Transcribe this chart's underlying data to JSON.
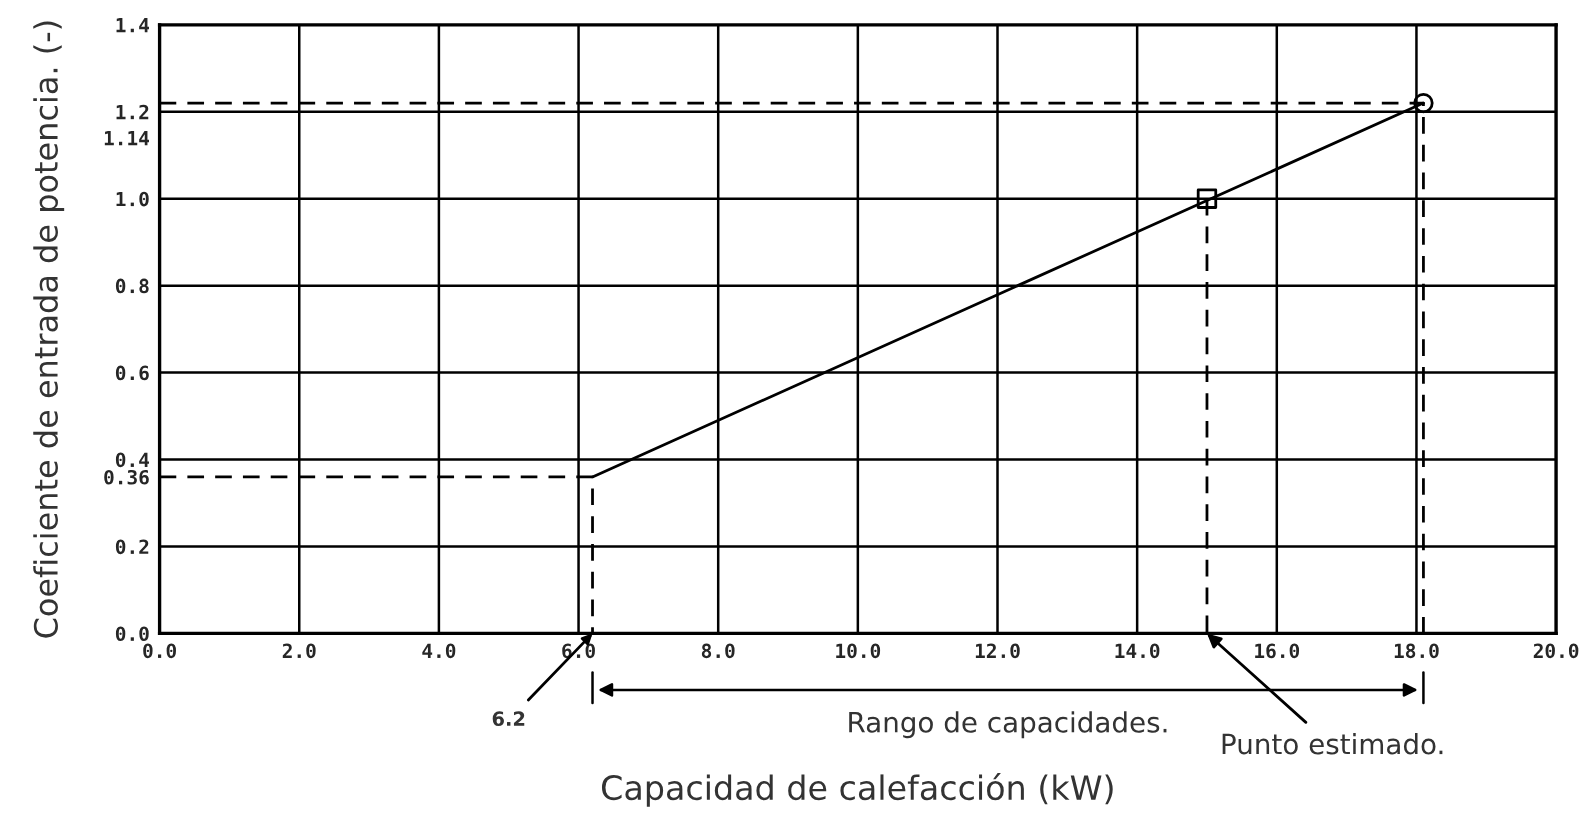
{
  "chart_data": {
    "type": "line",
    "xlabel": "Capacidad de calefacción (kW)",
    "ylabel": "Coeficiente de entrada de potencia. (-)",
    "xlim": [
      0,
      20
    ],
    "ylim": [
      0,
      1.4
    ],
    "xticks": [
      {
        "value": 0,
        "label": "0.0"
      },
      {
        "value": 2,
        "label": "2.0"
      },
      {
        "value": 4,
        "label": "4.0"
      },
      {
        "value": 6,
        "label": "6.0"
      },
      {
        "value": 8,
        "label": "8.0"
      },
      {
        "value": 10,
        "label": "10.0"
      },
      {
        "value": 12,
        "label": "12.0"
      },
      {
        "value": 14,
        "label": "14.0"
      },
      {
        "value": 16,
        "label": "16.0"
      },
      {
        "value": 18,
        "label": "18.0"
      },
      {
        "value": 20,
        "label": "20.0"
      }
    ],
    "yticks": [
      {
        "value": 0,
        "label": "0.0"
      },
      {
        "value": 0.2,
        "label": "0.2"
      },
      {
        "value": 0.36,
        "label": "0.36"
      },
      {
        "value": 0.4,
        "label": "0.4"
      },
      {
        "value": 0.6,
        "label": "0.6"
      },
      {
        "value": 0.8,
        "label": "0.8"
      },
      {
        "value": 1.0,
        "label": "1.0"
      },
      {
        "value": 1.14,
        "label": "1.14"
      },
      {
        "value": 1.2,
        "label": "1.2"
      },
      {
        "value": 1.4,
        "label": "1.4"
      }
    ],
    "grid": true,
    "legend": false,
    "series": [
      {
        "color": "#000000",
        "x": [
          6.2,
          18.1
        ],
        "values": [
          0.36,
          1.22
        ],
        "line_style": "solid",
        "marker": "none"
      },
      {
        "type": "scatter",
        "color": "#000000",
        "x": [
          15.0
        ],
        "values": [
          1.0
        ],
        "marker": "square"
      },
      {
        "type": "scatter",
        "color": "#000000",
        "x": [
          18.1
        ],
        "values": [
          1.22
        ],
        "marker": "circle"
      },
      {
        "type": "line",
        "color": "#000000",
        "x": [
          0,
          6.2,
          6.2
        ],
        "values": [
          0.36,
          0.36,
          0
        ],
        "line_style": "dashed",
        "marker": "none"
      },
      {
        "type": "line",
        "color": "#000000",
        "x": [
          0,
          18.1,
          18.1
        ],
        "values": [
          1.22,
          1.22,
          0
        ],
        "line_style": "dashed",
        "marker": "none"
      },
      {
        "type": "line",
        "color": "#000000",
        "x": [
          15.0,
          15.0
        ],
        "values": [
          1.0,
          0
        ],
        "line_style": "dashed",
        "marker": "none"
      }
    ],
    "annotations": [
      {
        "text": "6.2",
        "x": 6.2,
        "y": 0
      },
      {
        "text": "Punto estimado.",
        "x": 15.0,
        "y": 0
      },
      "Rango de capacidades."
    ]
  }
}
